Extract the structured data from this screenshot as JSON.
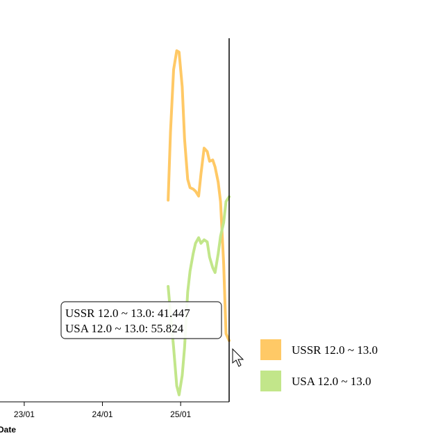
{
  "chart_data": {
    "type": "line",
    "x_label": "Date",
    "x": [
      24.84,
      24.87,
      24.91,
      24.95,
      24.98,
      25.02,
      25.05,
      25.09,
      25.12,
      25.16,
      25.19,
      25.23,
      25.26,
      25.3,
      25.34,
      25.37,
      25.41,
      25.44,
      25.48,
      25.51,
      25.55,
      25.58,
      25.62
    ],
    "series": [
      {
        "name": "USSR 12.0 ~ 13.0",
        "color": "#ffc966",
        "values": [
          55.48,
          62.28,
          68.53,
          70.41,
          70.27,
          66.8,
          61.59,
          57.56,
          56.73,
          56.59,
          56.38,
          55.89,
          58.12,
          60.68,
          60.34,
          59.37,
          59.5,
          58.81,
          57.28,
          55.34,
          49.09,
          42.14,
          41.447
        ]
      },
      {
        "name": "USA 12.0 ~ 13.0",
        "color": "#c2e68a",
        "values": [
          46.86,
          44.23,
          40.75,
          36.93,
          36.03,
          37.97,
          40.75,
          46.31,
          48.39,
          50.13,
          51.17,
          51.73,
          51.17,
          51.52,
          51.31,
          49.78,
          48.74,
          48.25,
          50.13,
          51.87,
          53.25,
          55.34,
          55.824
        ]
      }
    ],
    "xlim": [
      22.69,
      25.62
    ],
    "xticks": [
      {
        "value": 23,
        "label": "23/01"
      },
      {
        "value": 24,
        "label": "24/01"
      },
      {
        "value": 25,
        "label": "25/01"
      }
    ],
    "ylim": [
      35.33,
      75.48
    ],
    "tooltip": [
      "USSR 12.0 ~ 13.0: 41.447",
      "USA 12.0 ~ 13.0: 55.824"
    ]
  }
}
